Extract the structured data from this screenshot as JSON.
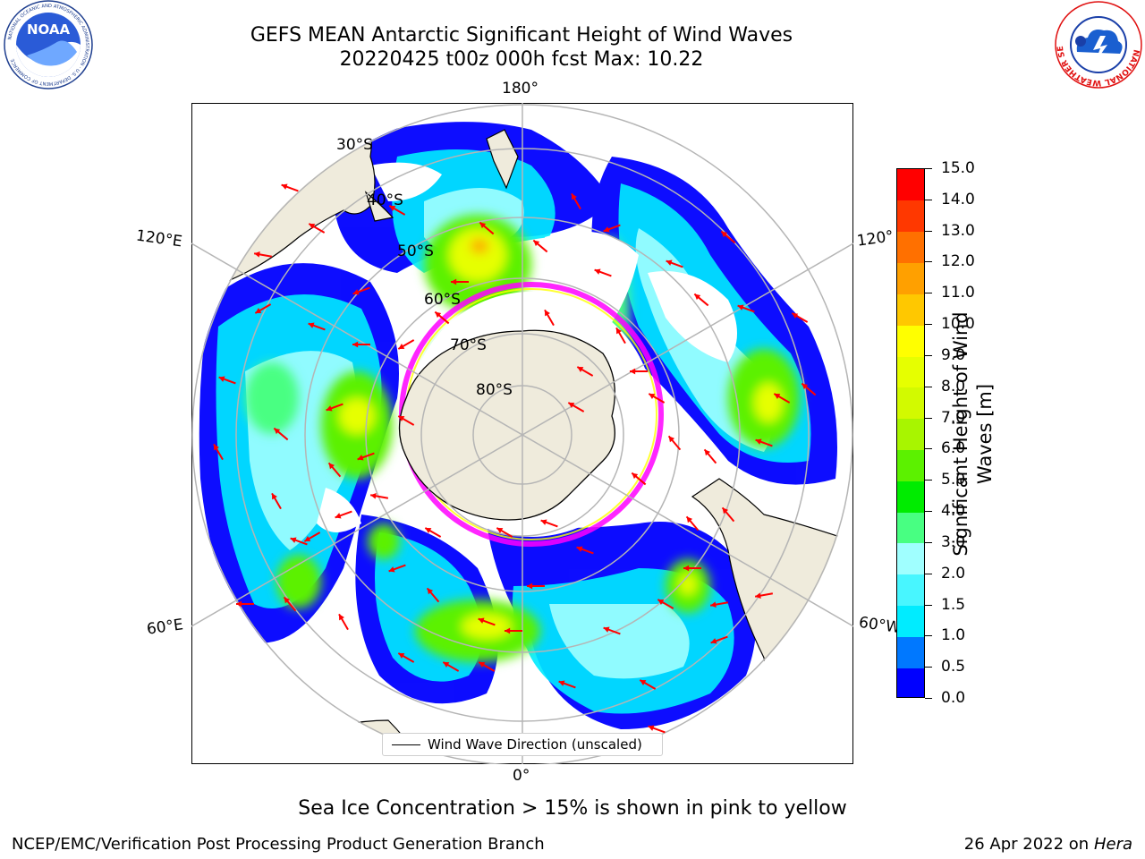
{
  "title": {
    "line1": "GEFS MEAN Antarctic Significant Height of Wind Waves",
    "line2": "20220425 t00z 000h fcst   Max: 10.22"
  },
  "map": {
    "projection": "south-polar-stereographic",
    "longitude_labels": {
      "top": "180°",
      "bottom": "0°",
      "left_upper": "120°E",
      "left_lower": "60°E",
      "right_upper": "120°",
      "right_lower": "60°W"
    },
    "latitude_labels": [
      "30°S",
      "40°S",
      "50°S",
      "60°S",
      "70°S",
      "80°S"
    ],
    "land_color": "#efebdc",
    "graticule_color": "#b5b5b5",
    "legend_label": "Wind Wave Direction (unscaled)",
    "arrow_color": "#ff0000",
    "sea_ice_colors": [
      "#ff00ff",
      "#ffff00"
    ],
    "max_value": 10.22
  },
  "colorbar": {
    "label": "Significant Height of Wind Waves [m]",
    "ticks": [
      "0.0",
      "0.5",
      "1.0",
      "1.5",
      "2.0",
      "3.0",
      "4.0",
      "5.0",
      "6.0",
      "7.0",
      "8.0",
      "9.0",
      "10.0",
      "11.0",
      "12.0",
      "13.0",
      "14.0",
      "15.0"
    ],
    "colors": [
      "#0000ff",
      "#0078ff",
      "#00ecff",
      "#48f6ff",
      "#a0ffff",
      "#48ff82",
      "#00ec00",
      "#5cf100",
      "#a8f500",
      "#d2fa00",
      "#e6ff00",
      "#ffff00",
      "#ffc800",
      "#ffa000",
      "#ff7000",
      "#ff3800",
      "#ff0000"
    ]
  },
  "subtitle": "Sea Ice Concentration > 15% is shown in pink to yellow",
  "footer": {
    "left": "NCEP/EMC/Verification Post Processing Product Generation Branch",
    "right_prefix": "26 Apr 2022 on ",
    "right_italic": "Hera"
  },
  "logos": {
    "left": {
      "name": "NOAA",
      "text": "NOAA",
      "ring_text": "NATIONAL OCEANIC AND ATMOSPHERIC ADMINISTRATION · U.S. DEPARTMENT OF COMMERCE"
    },
    "right": {
      "name": "National Weather Service",
      "ring_text": "NATIONAL WEATHER SERVICE"
    }
  }
}
